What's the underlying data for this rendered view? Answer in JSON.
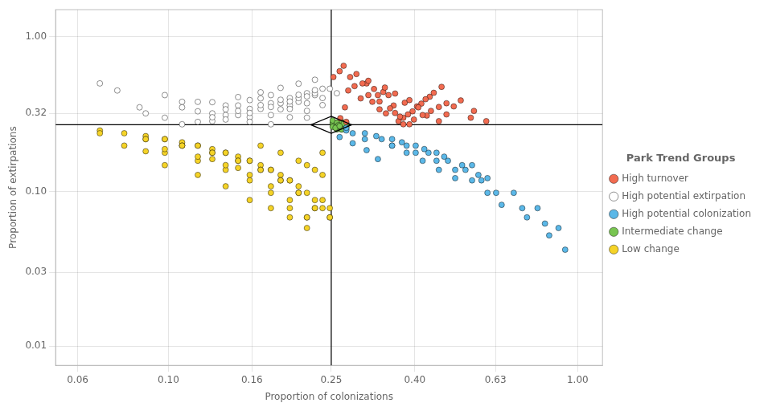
{
  "chart_data": {
    "type": "scatter",
    "log": true,
    "grid": true,
    "legend": "right",
    "xlabel": "Proportion of colonizations",
    "ylabel": "Proportion of extirpations",
    "legend_title": "Park Trend Groups",
    "xlim": [
      0.053,
      1.15
    ],
    "ylim": [
      0.0075,
      1.5
    ],
    "xticks": [
      0.06,
      {
        "value": 0.1,
        "label": "0.10"
      },
      0.16,
      0.25,
      {
        "value": 0.4,
        "label": "0.40"
      },
      0.63,
      {
        "value": 1.0,
        "label": "1.00"
      }
    ],
    "yticks": [
      0.01,
      0.03,
      {
        "value": 0.1,
        "label": "0.10"
      },
      0.32,
      {
        "value": 1.0,
        "label": "1.00"
      }
    ],
    "vline": 0.25,
    "hline": 0.27,
    "diamond": {
      "x": [
        0.25,
        0.280505,
        0.25,
        0.222813
      ],
      "y": [
        0.306453,
        0.27,
        0.237883,
        0.27
      ]
    },
    "series": [
      {
        "name": "High turnover",
        "color": "#F26B50",
        "x": [
          0.27,
          0.295,
          0.315,
          0.34,
          0.275,
          0.305,
          0.325,
          0.355,
          0.375,
          0.253,
          0.285,
          0.335,
          0.395,
          0.415,
          0.435,
          0.365,
          0.385,
          0.405,
          0.425,
          0.445,
          0.465,
          0.262,
          0.278,
          0.298,
          0.318,
          0.345,
          0.378,
          0.328,
          0.268,
          0.288,
          0.308,
          0.338,
          0.358,
          0.388,
          0.408,
          0.428,
          0.458,
          0.478,
          0.498,
          0.548,
          0.375,
          0.398,
          0.418,
          0.438,
          0.458,
          0.478,
          0.518,
          0.558,
          0.598,
          0.358,
          0.263,
          0.272,
          0.308,
          0.328,
          0.348,
          0.368,
          0.388
        ],
        "y": [
          0.35,
          0.4,
          0.38,
          0.32,
          0.45,
          0.5,
          0.42,
          0.36,
          0.3,
          0.55,
          0.48,
          0.44,
          0.33,
          0.37,
          0.41,
          0.285,
          0.315,
          0.355,
          0.395,
          0.435,
          0.475,
          0.6,
          0.55,
          0.5,
          0.46,
          0.42,
          0.375,
          0.34,
          0.65,
          0.575,
          0.52,
          0.47,
          0.43,
          0.39,
          0.35,
          0.31,
          0.285,
          0.315,
          0.355,
          0.3,
          0.272,
          0.292,
          0.312,
          0.332,
          0.352,
          0.372,
          0.388,
          0.332,
          0.285,
          0.322,
          0.298,
          0.282,
          0.42,
          0.382,
          0.345,
          0.305,
          0.272
        ]
      },
      {
        "name": "High potential extirpation",
        "color": "#FFFFFF",
        "x": [
          0.085,
          0.108,
          0.128,
          0.148,
          0.168,
          0.188,
          0.208,
          0.228,
          0.098,
          0.118,
          0.138,
          0.158,
          0.178,
          0.198,
          0.218,
          0.075,
          0.128,
          0.148,
          0.168,
          0.188,
          0.208,
          0.228,
          0.248,
          0.108,
          0.128,
          0.148,
          0.168,
          0.188,
          0.208,
          0.228,
          0.068,
          0.098,
          0.118,
          0.138,
          0.158,
          0.178,
          0.198,
          0.218,
          0.238,
          0.088,
          0.108,
          0.128,
          0.148,
          0.168,
          0.188,
          0.208,
          0.228,
          0.118,
          0.138,
          0.158,
          0.178,
          0.198,
          0.218,
          0.238,
          0.158,
          0.178,
          0.198,
          0.218,
          0.238,
          0.258,
          0.138,
          0.158,
          0.178,
          0.198,
          0.218
        ],
        "y": [
          0.35,
          0.38,
          0.32,
          0.36,
          0.4,
          0.34,
          0.38,
          0.42,
          0.3,
          0.33,
          0.36,
          0.39,
          0.42,
          0.36,
          0.3,
          0.45,
          0.285,
          0.312,
          0.342,
          0.372,
          0.402,
          0.432,
          0.462,
          0.272,
          0.302,
          0.332,
          0.362,
          0.392,
          0.422,
          0.452,
          0.5,
          0.42,
          0.38,
          0.34,
          0.302,
          0.272,
          0.302,
          0.332,
          0.362,
          0.32,
          0.35,
          0.378,
          0.408,
          0.438,
          0.468,
          0.498,
          0.528,
          0.282,
          0.312,
          0.342,
          0.372,
          0.402,
          0.432,
          0.462,
          0.282,
          0.312,
          0.342,
          0.372,
          0.402,
          0.432,
          0.292,
          0.322,
          0.352,
          0.382,
          0.412
        ]
      },
      {
        "name": "High potential colonization",
        "color": "#5BB8E8",
        "x": [
          0.262,
          0.282,
          0.305,
          0.325,
          0.352,
          0.382,
          0.418,
          0.458,
          0.502,
          0.552,
          0.602,
          0.698,
          0.798,
          0.898,
          0.302,
          0.352,
          0.402,
          0.452,
          0.502,
          0.552,
          0.602,
          0.652,
          0.752,
          0.852,
          0.282,
          0.332,
          0.382,
          0.432,
          0.482,
          0.532,
          0.582,
          0.632,
          0.732,
          0.832,
          0.932,
          0.272,
          0.322,
          0.372,
          0.422,
          0.472,
          0.522,
          0.572,
          0.272,
          0.302,
          0.352,
          0.402,
          0.452
        ],
        "y": [
          0.225,
          0.205,
          0.185,
          0.162,
          0.198,
          0.178,
          0.158,
          0.138,
          0.122,
          0.148,
          0.122,
          0.098,
          0.078,
          0.058,
          0.218,
          0.198,
          0.178,
          0.158,
          0.138,
          0.118,
          0.098,
          0.082,
          0.068,
          0.052,
          0.238,
          0.218,
          0.198,
          0.178,
          0.158,
          0.138,
          0.118,
          0.098,
          0.078,
          0.062,
          0.042,
          0.248,
          0.228,
          0.208,
          0.188,
          0.168,
          0.148,
          0.128,
          0.258,
          0.238,
          0.218,
          0.198,
          0.178
        ]
      },
      {
        "name": "Intermediate change",
        "color": "#78C551",
        "x": [
          0.252,
          0.258,
          0.265,
          0.272,
          0.258,
          0.265,
          0.272,
          0.252,
          0.258,
          0.265,
          0.272,
          0.252,
          0.258,
          0.265,
          0.272,
          0.265,
          0.252,
          0.258,
          0.265,
          0.272,
          0.26,
          0.268,
          0.256,
          0.262
        ],
        "y": [
          0.272,
          0.278,
          0.265,
          0.258,
          0.262,
          0.272,
          0.252,
          0.278,
          0.272,
          0.262,
          0.278,
          0.262,
          0.252,
          0.282,
          0.272,
          0.252,
          0.288,
          0.278,
          0.252,
          0.262,
          0.268,
          0.275,
          0.258,
          0.265
        ]
      },
      {
        "name": "Low change",
        "color": "#F5D327",
        "x": [
          0.088,
          0.108,
          0.128,
          0.148,
          0.168,
          0.188,
          0.208,
          0.228,
          0.098,
          0.118,
          0.138,
          0.158,
          0.178,
          0.198,
          0.218,
          0.238,
          0.078,
          0.098,
          0.118,
          0.138,
          0.158,
          0.178,
          0.198,
          0.218,
          0.238,
          0.068,
          0.088,
          0.108,
          0.128,
          0.148,
          0.168,
          0.188,
          0.208,
          0.228,
          0.248,
          0.078,
          0.098,
          0.118,
          0.138,
          0.158,
          0.178,
          0.198,
          0.218,
          0.238,
          0.088,
          0.108,
          0.128,
          0.148,
          0.168,
          0.188,
          0.208,
          0.228,
          0.248,
          0.098,
          0.118,
          0.138,
          0.158,
          0.178,
          0.198,
          0.218,
          0.068,
          0.088,
          0.108,
          0.128,
          0.148,
          0.168,
          0.188,
          0.208,
          0.228,
          0.248,
          0.098,
          0.118,
          0.138,
          0.158,
          0.178,
          0.198,
          0.218,
          0.238
        ],
        "y": [
          0.182,
          0.198,
          0.162,
          0.142,
          0.198,
          0.178,
          0.158,
          0.138,
          0.218,
          0.198,
          0.178,
          0.158,
          0.138,
          0.118,
          0.148,
          0.178,
          0.238,
          0.218,
          0.198,
          0.178,
          0.158,
          0.138,
          0.118,
          0.098,
          0.128,
          0.248,
          0.228,
          0.208,
          0.188,
          0.168,
          0.148,
          0.128,
          0.108,
          0.088,
          0.078,
          0.198,
          0.178,
          0.158,
          0.138,
          0.118,
          0.098,
          0.078,
          0.068,
          0.088,
          0.218,
          0.198,
          0.178,
          0.158,
          0.138,
          0.118,
          0.098,
          0.078,
          0.068,
          0.188,
          0.168,
          0.148,
          0.128,
          0.108,
          0.088,
          0.068,
          0.238,
          0.218,
          0.198,
          0.178,
          0.158,
          0.138,
          0.118,
          0.098,
          0.078,
          0.068,
          0.148,
          0.128,
          0.108,
          0.088,
          0.078,
          0.068,
          0.058,
          0.078
        ]
      }
    ]
  }
}
